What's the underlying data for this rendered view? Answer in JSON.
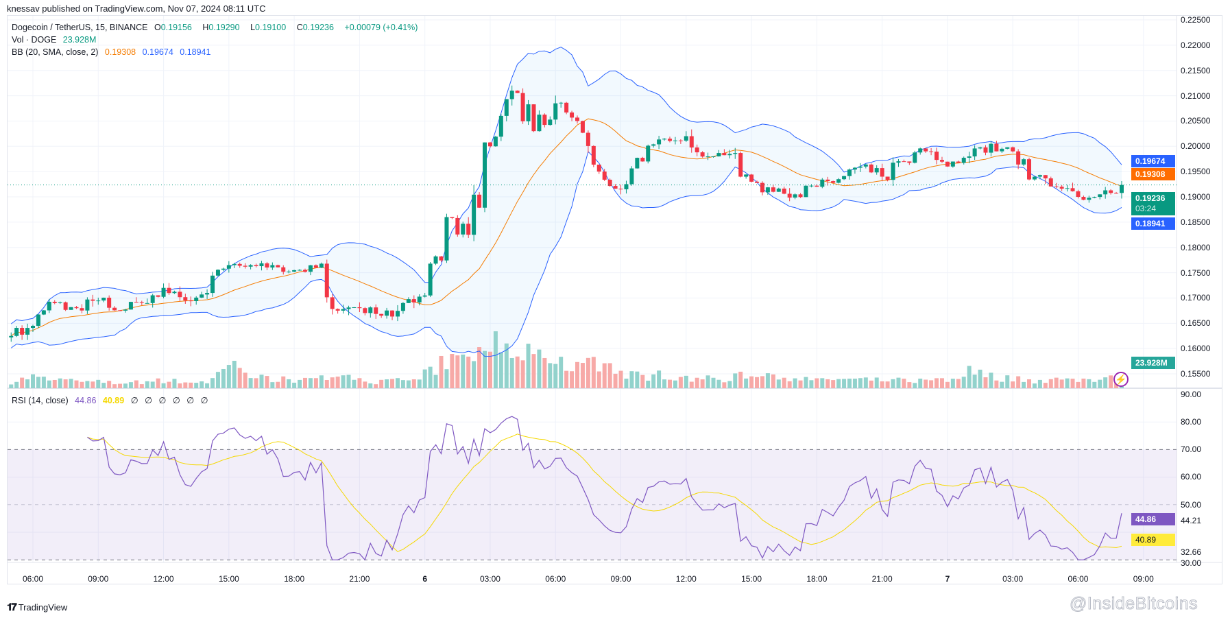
{
  "published": "knessav published on TradingView.com, Nov 07, 2024 08:11 UTC",
  "legend": {
    "symbol": "Dogecoin / TetherUS, 15, BINANCE",
    "open_label": "O",
    "open": "0.19156",
    "high_label": "H",
    "high": "0.19290",
    "low_label": "L",
    "low": "0.19100",
    "close_label": "C",
    "close": "0.19236",
    "change": "+0.00079 (+0.41%)",
    "vol_label": "Vol · DOGE",
    "vol_value": "23.928M",
    "bb_label": "BB (20, SMA, close, 2)",
    "bb_basis": "0.19308",
    "bb_upper": "0.19674",
    "bb_lower": "0.18941",
    "rsi_label": "RSI (14, close)",
    "rsi_value": "44.86",
    "rsi_ma": "40.89",
    "rsi_extra": [
      "∅",
      "∅",
      "∅",
      "∅",
      "∅",
      "∅"
    ]
  },
  "price_axis": [
    "0.22500",
    "0.22000",
    "0.21500",
    "0.21000",
    "0.20500",
    "0.20000",
    "0.19500",
    "0.19000",
    "0.18500",
    "0.18000",
    "0.17500",
    "0.17000",
    "0.16500",
    "0.16000",
    "0.15500"
  ],
  "price_tags": {
    "upper": "0.19674",
    "basis": "0.19308",
    "last": "0.19236",
    "countdown": "03:24",
    "lower": "0.18941",
    "volume": "23.928M"
  },
  "rsi_axis": [
    "90.00",
    "80.00",
    "70.00",
    "60.00",
    "50.00",
    "44.21",
    "32.66",
    "30.00"
  ],
  "rsi_tags": {
    "rsi": "44.86",
    "ma": "40.89"
  },
  "time_axis": [
    "06:00",
    "09:00",
    "12:00",
    "15:00",
    "18:00",
    "21:00",
    "6",
    "03:00",
    "06:00",
    "09:00",
    "12:00",
    "15:00",
    "18:00",
    "21:00",
    "7",
    "03:00",
    "06:00",
    "09:00"
  ],
  "footer": {
    "logo_text": "TradingView",
    "watermark": "@InsideBitcoins"
  },
  "colors": {
    "up": "#089981",
    "down": "#f23645",
    "bb_basis": "#f57c00",
    "bb_band": "#2962ff",
    "rsi": "#7e57c2",
    "rsi_ma": "#f5d800",
    "vol_up": "#92d2cc",
    "vol_down": "#f7a9a7"
  },
  "chart_data": {
    "type": "candlestick",
    "interval": "15m",
    "symbol": "DOGEUSDT",
    "start_time": "Nov 05 05:00",
    "hourly_close": [
      0.1625,
      0.1645,
      0.169,
      0.168,
      0.1695,
      0.1675,
      0.169,
      0.172,
      0.1695,
      0.171,
      0.1765,
      0.1765,
      0.1765,
      0.1755,
      0.176,
      0.1675,
      0.168,
      0.1665,
      0.169,
      0.1705,
      0.186,
      0.1825,
      0.2,
      0.211,
      0.203,
      0.2085,
      0.205,
      0.195,
      0.1915,
      0.197,
      0.2015,
      0.202,
      0.198,
      0.1985,
      0.193,
      0.191,
      0.1905,
      0.192,
      0.1935,
      0.196,
      0.194,
      0.197,
      0.199,
      0.196,
      0.198,
      0.2005,
      0.199,
      0.194,
      0.192,
      0.19,
      0.1905,
      0.19236
    ],
    "hourly_volume_m": [
      13,
      24,
      19,
      13,
      13,
      11,
      13,
      16,
      13,
      13,
      48,
      24,
      19,
      16,
      16,
      40,
      16,
      13,
      16,
      32,
      56,
      48,
      96,
      72,
      64,
      48,
      48,
      56,
      32,
      24,
      29,
      19,
      19,
      19,
      32,
      29,
      22,
      16,
      19,
      16,
      16,
      16,
      16,
      16,
      35,
      24,
      19,
      16,
      16,
      19,
      16,
      24
    ],
    "ylim": [
      0.155,
      0.225
    ],
    "rsi_ylim": [
      30,
      90
    ],
    "rsi_levels": [
      70,
      50,
      30
    ],
    "indicators": [
      "Volume",
      "Bollinger Bands (20, SMA, close, 2)",
      "RSI (14, close)"
    ]
  }
}
